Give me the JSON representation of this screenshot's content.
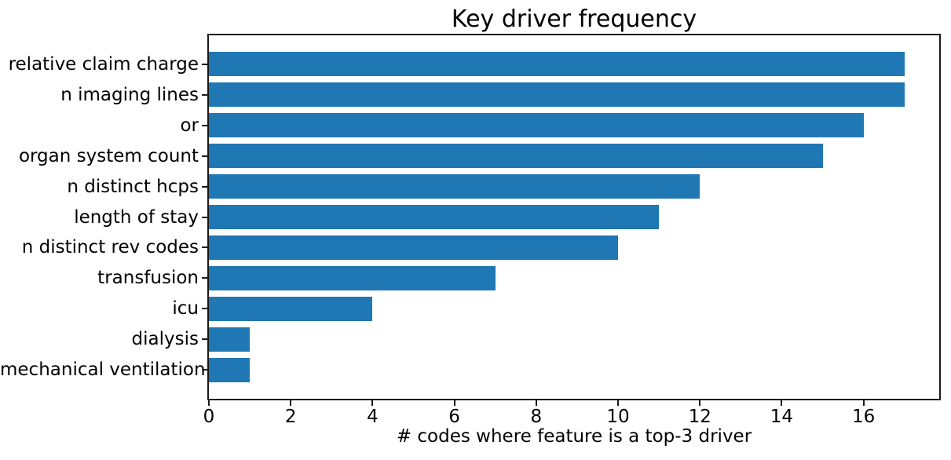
{
  "chart_data": {
    "type": "bar",
    "orientation": "horizontal",
    "title": "Key driver frequency",
    "xlabel": "# codes where feature is a top-3 driver",
    "ylabel": "",
    "categories": [
      "relative claim charge",
      "n imaging lines",
      "or",
      "organ system count",
      "n distinct hcps",
      "length of stay",
      "n distinct rev codes",
      "transfusion",
      "icu",
      "dialysis",
      "mechanical ventilation"
    ],
    "values": [
      17,
      17,
      16,
      15,
      12,
      11,
      10,
      7,
      4,
      1,
      1
    ],
    "xticks": [
      0,
      2,
      4,
      6,
      8,
      10,
      12,
      14,
      16
    ],
    "xlim": [
      0,
      17.85
    ],
    "grid": false,
    "legend": "none",
    "bar_color": "#1f77b4",
    "axis_color": "#1a1a1a",
    "text_color": "#000000",
    "background_color": "#ffffff"
  }
}
